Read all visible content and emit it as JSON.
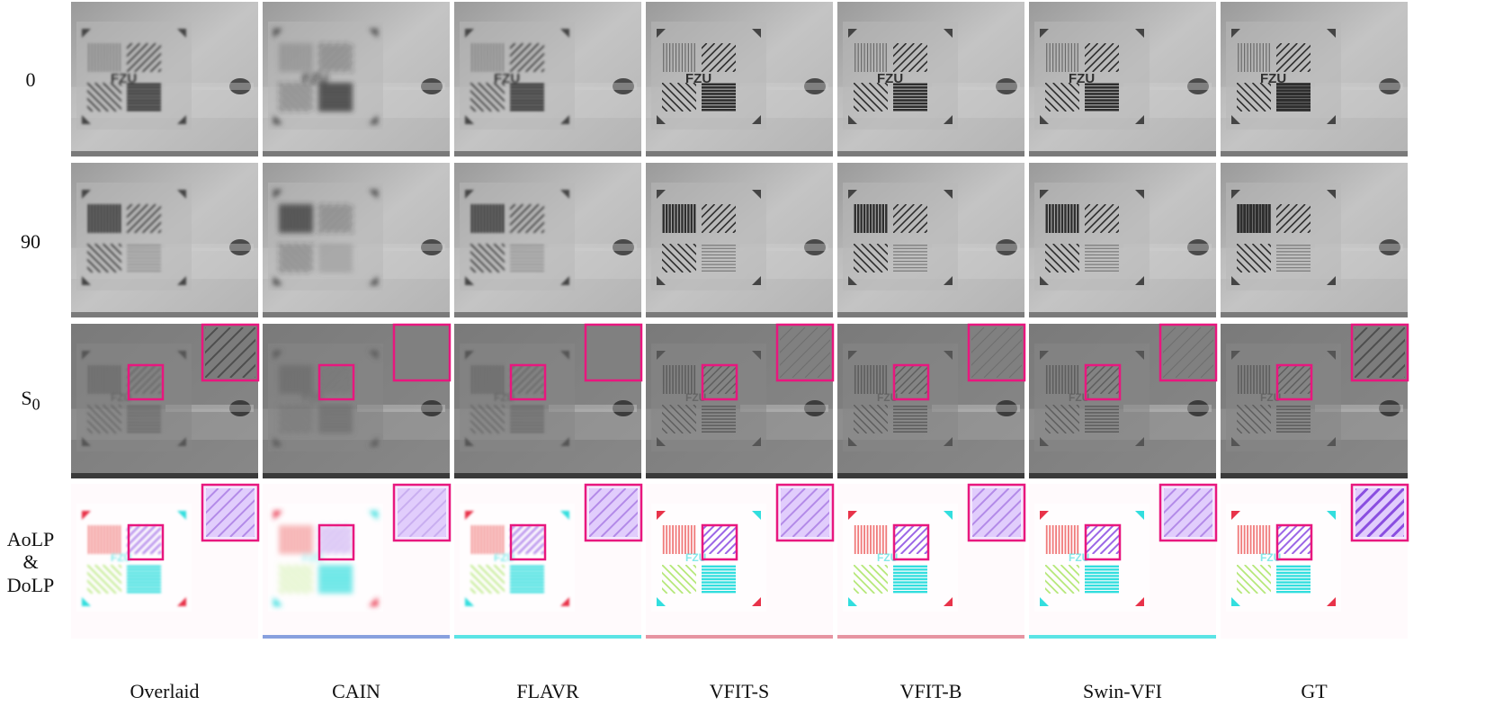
{
  "figure": {
    "row_labels": [
      {
        "id": "row-0",
        "text": "0"
      },
      {
        "id": "row-90",
        "text": "90"
      },
      {
        "id": "row-s0",
        "text": "S",
        "sub": "0"
      },
      {
        "id": "row-aolp-dolp",
        "lines": [
          "AoLP",
          "&",
          "DoLP"
        ]
      }
    ],
    "columns": [
      "Overlaid",
      "CAIN",
      "FLAVR",
      "VFIT-S",
      "VFIT-B",
      "Swin-VFI",
      "GT"
    ],
    "panel_text": {
      "fzu": "FZU"
    },
    "colors": {
      "highlight_box": "#e8177e",
      "aolp_red": "#f07a7a",
      "aolp_green": "#b6e87a",
      "aolp_cyan": "#32dede",
      "aolp_violet": "#9b66e6",
      "gray_bg": "#a6a6a6",
      "s0_bg": "#7e7e7e"
    }
  }
}
